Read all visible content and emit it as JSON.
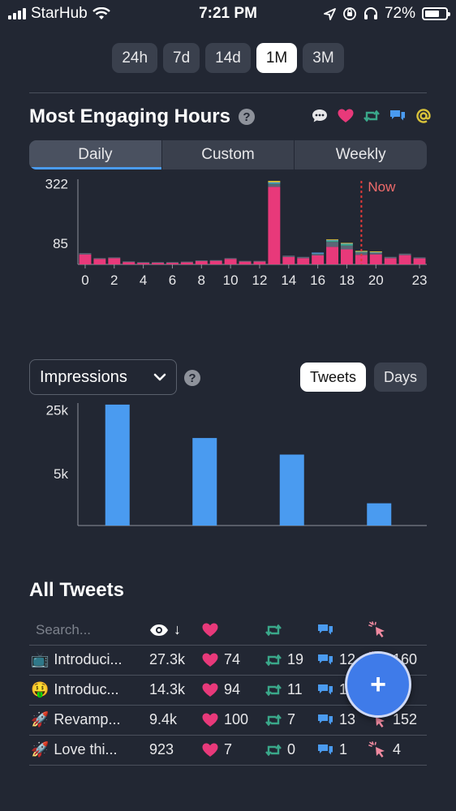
{
  "status": {
    "carrier": "StarHub",
    "time": "7:21 PM",
    "battery": "72%",
    "battery_level": 0.72
  },
  "ranges": [
    {
      "label": "24h",
      "active": false
    },
    {
      "label": "7d",
      "active": false
    },
    {
      "label": "14d",
      "active": false
    },
    {
      "label": "1M",
      "active": true
    },
    {
      "label": "3M",
      "active": false
    }
  ],
  "engaging": {
    "title": "Most Engaging Hours",
    "help": "?",
    "tabs": [
      {
        "label": "Daily",
        "active": true
      },
      {
        "label": "Custom",
        "active": false
      },
      {
        "label": "Weekly",
        "active": false
      }
    ],
    "metric_icons": [
      "comment-icon",
      "heart-icon",
      "retweet-icon",
      "reply-icon",
      "mention-icon"
    ],
    "colors": {
      "likes": "#e8397a",
      "other": "#5b6676",
      "retweets": "#3aa88a",
      "replies": "#4a9bf0",
      "mentions": "#d8c23a",
      "now": "#e03a3a"
    },
    "now_label": "Now"
  },
  "impressions": {
    "selector": "Impressions",
    "help": "?",
    "toggles": [
      {
        "label": "Tweets",
        "active": true
      },
      {
        "label": "Days",
        "active": false
      }
    ],
    "color": "#4a9bf0"
  },
  "chart_data": [
    {
      "type": "bar",
      "stacked": true,
      "x": [
        0,
        1,
        2,
        3,
        4,
        5,
        6,
        7,
        8,
        9,
        10,
        11,
        12,
        13,
        14,
        15,
        16,
        17,
        18,
        19,
        20,
        21,
        22,
        23
      ],
      "x_ticks": [
        "0",
        "2",
        "4",
        "6",
        "8",
        "10",
        "12",
        "14",
        "16",
        "18",
        "20",
        "23"
      ],
      "y_ticks": [
        "85",
        "322"
      ],
      "series": [
        {
          "values": [
            40,
            22,
            25,
            10,
            8,
            8,
            8,
            10,
            14,
            15,
            22,
            12,
            12,
            310,
            30,
            25,
            36,
            70,
            60,
            38,
            40,
            25,
            37,
            24
          ]
        },
        {
          "values": [
            5,
            3,
            3,
            2,
            1,
            1,
            1,
            1,
            2,
            2,
            3,
            2,
            2,
            12,
            5,
            5,
            8,
            20,
            15,
            10,
            8,
            5,
            6,
            4
          ]
        },
        {
          "values": [
            0,
            0,
            0,
            0,
            0,
            0,
            0,
            0,
            0,
            0,
            0,
            0,
            0,
            4,
            0,
            0,
            2,
            5,
            6,
            3,
            2,
            0,
            0,
            0
          ]
        },
        {
          "values": [
            0,
            0,
            0,
            0,
            0,
            0,
            0,
            0,
            0,
            0,
            0,
            0,
            0,
            2,
            0,
            0,
            1,
            3,
            3,
            2,
            1,
            0,
            0,
            0
          ]
        },
        {
          "values": [
            0,
            0,
            0,
            0,
            0,
            0,
            0,
            0,
            0,
            0,
            0,
            0,
            0,
            6,
            0,
            0,
            0,
            2,
            2,
            1,
            1,
            0,
            0,
            0
          ]
        }
      ],
      "now_x": 19
    },
    {
      "type": "bar",
      "categories": [
        "Introduci...",
        "Introduc...",
        "Revamp...",
        "Love thi..."
      ],
      "values": [
        27300,
        14300,
        9400,
        923
      ],
      "y_ticks": [
        "5k",
        "25k"
      ],
      "y_scale": "sqrt"
    }
  ],
  "tweets": {
    "title": "All Tweets",
    "search_placeholder": "Search...",
    "sort_arrow": "↓",
    "rows": [
      {
        "emoji": "📺",
        "text": "Introduci...",
        "impressions": "27.3k",
        "likes": "74",
        "retweets": "19",
        "replies": "12",
        "clicks": "160"
      },
      {
        "emoji": "🤑",
        "text": "Introduc...",
        "impressions": "14.3k",
        "likes": "94",
        "retweets": "11",
        "replies": "1",
        "clicks": "7"
      },
      {
        "emoji": "🚀",
        "text": "Revamp...",
        "impressions": "9.4k",
        "likes": "100",
        "retweets": "7",
        "replies": "13",
        "clicks": "152"
      },
      {
        "emoji": "🚀",
        "text": "Love thi...",
        "impressions": "923",
        "likes": "7",
        "retweets": "0",
        "replies": "1",
        "clicks": "4"
      }
    ]
  },
  "fab": {
    "label": "+"
  }
}
